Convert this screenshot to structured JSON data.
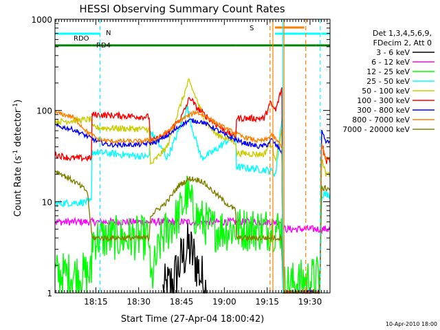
{
  "chart_data": {
    "type": "line",
    "title": "HESSI Observing Summary Count Rates",
    "xlabel": "Start Time (27-Apr-04 18:00:42)",
    "ylabel_main": "Count Rate (s",
    "ylabel_sup1": "-1",
    "ylabel_mid": " detector",
    "ylabel_sup2": "-1",
    "ylabel_end": ")",
    "yscale": "log",
    "ylim": [
      1,
      1000
    ],
    "xlim_minutes": [
      0.7,
      97.0
    ],
    "x_ticks": [
      {
        "minute": 15,
        "label": "18:15"
      },
      {
        "minute": 30,
        "label": "18:30"
      },
      {
        "minute": 45,
        "label": "18:45"
      },
      {
        "minute": 60,
        "label": "19:00"
      },
      {
        "minute": 75,
        "label": "19:15"
      },
      {
        "minute": 90,
        "label": "19:30"
      }
    ],
    "y_ticks": [
      {
        "value": 1,
        "label": "1"
      },
      {
        "value": 10,
        "label": "10"
      },
      {
        "value": 100,
        "label": "100"
      },
      {
        "value": 1000,
        "label": "1000"
      }
    ],
    "legend": {
      "placement": "right",
      "header": [
        "Det 1,3,4,5,6,9,",
        "FDecim 2, Att 0"
      ],
      "entries": [
        {
          "label": "3 - 6 keV",
          "color": "#000000"
        },
        {
          "label": "6 - 12 keV",
          "color": "#ff00ff"
        },
        {
          "label": "12 - 25 keV",
          "color": "#00ff00"
        },
        {
          "label": "25 - 50 keV",
          "color": "#00ffff"
        },
        {
          "label": "50 - 100 keV",
          "color": "#cccc00"
        },
        {
          "label": "100 - 300 keV",
          "color": "#ff0000"
        },
        {
          "label": "300 - 800 keV",
          "color": "#0000ff"
        },
        {
          "label": "800 - 7000 keV",
          "color": "#ff7f00"
        },
        {
          "label": "7000 - 20000 keV",
          "color": "#808000"
        }
      ]
    },
    "flags": [
      {
        "label": "RDO",
        "color": "#00ffff",
        "level": "upper",
        "segments": [
          [
            0.7,
            16.5
          ]
        ]
      },
      {
        "label": "N",
        "color": "#00ffff",
        "level": "top",
        "segments": []
      },
      {
        "label": "RD4",
        "color": "#008000",
        "level": "lower",
        "segments": [
          [
            0.7,
            13.5
          ],
          [
            13.5,
            33.8
          ],
          [
            33.8,
            64.0
          ],
          [
            64.0,
            92.0
          ],
          [
            92.0,
            97.0
          ]
        ]
      },
      {
        "label": "S",
        "color": "#ff7f00",
        "level": "top",
        "segments": [
          [
            77.7,
            88.0
          ]
        ]
      }
    ],
    "flag_cyan_right": [
      [
        77.7,
        93.5
      ],
      [
        94.0,
        97.0
      ]
    ],
    "vlines": [
      {
        "minute": 16.5,
        "color": "#00ffff",
        "style": "dashed"
      },
      {
        "minute": 76.0,
        "color": "#ff7f00",
        "style": "dashed"
      },
      {
        "minute": 77.0,
        "color": "#ff7f00",
        "style": "solid"
      },
      {
        "minute": 80.5,
        "color": "#00ffff",
        "style": "solid"
      },
      {
        "minute": 80.9,
        "color": "#ff7f00",
        "style": "solid"
      },
      {
        "minute": 88.5,
        "color": "#ff7f00",
        "style": "dashed"
      },
      {
        "minute": 93.6,
        "color": "#00ffff",
        "style": "dashed"
      }
    ],
    "series": [
      {
        "name": "3 - 6 keV",
        "color": "#000000",
        "noise": 0.6,
        "points": [
          [
            38.5,
            1.0
          ],
          [
            42,
            1.3
          ],
          [
            45,
            2.3
          ],
          [
            47.5,
            3.2
          ],
          [
            50,
            2.2
          ],
          [
            52.5,
            1.3
          ],
          [
            54,
            1.0
          ]
        ]
      },
      {
        "name": "6 - 12 keV",
        "color": "#ff00ff",
        "noise": 0.08,
        "points": [
          [
            0.7,
            6
          ],
          [
            80,
            6
          ],
          [
            81,
            5
          ],
          [
            97,
            5
          ]
        ]
      },
      {
        "name": "12 - 25 keV",
        "color": "#00ff00",
        "noise": 0.5,
        "points": [
          [
            0.7,
            1.6
          ],
          [
            13.5,
            1.6
          ],
          [
            13.6,
            4
          ],
          [
            33.8,
            4
          ],
          [
            34,
            1.2
          ],
          [
            38,
            4
          ],
          [
            44,
            7
          ],
          [
            47,
            12
          ],
          [
            50,
            7
          ],
          [
            56,
            5
          ],
          [
            80,
            5
          ],
          [
            80.8,
            1.2
          ],
          [
            93.5,
            1.5
          ]
        ]
      },
      {
        "name": "25 - 50 keV",
        "color": "#00ffff",
        "noise": 0.08,
        "points": [
          [
            0.7,
            9.5
          ],
          [
            13.5,
            10
          ],
          [
            13.7,
            35
          ],
          [
            33.8,
            31
          ],
          [
            34,
            60
          ],
          [
            40,
            30
          ],
          [
            44,
            60
          ],
          [
            47,
            110
          ],
          [
            49,
            60
          ],
          [
            52,
            30
          ],
          [
            56,
            35
          ],
          [
            64,
            55
          ],
          [
            64.2,
            24
          ],
          [
            76,
            22
          ],
          [
            78,
            20
          ],
          [
            80.4,
            100
          ],
          [
            80.6,
            1.0
          ],
          [
            93.5,
            1.0
          ],
          [
            94,
            12
          ],
          [
            97,
            12
          ]
        ]
      },
      {
        "name": "50 - 100 keV",
        "color": "#cccc00",
        "noise": 0.07,
        "points": [
          [
            0.7,
            75
          ],
          [
            13.5,
            80
          ],
          [
            13.7,
            65
          ],
          [
            33.8,
            62
          ],
          [
            34,
            25
          ],
          [
            40,
            40
          ],
          [
            44,
            100
          ],
          [
            47.5,
            210
          ],
          [
            50,
            140
          ],
          [
            53,
            80
          ],
          [
            57,
            55
          ],
          [
            64,
            45
          ],
          [
            64.2,
            34
          ],
          [
            74,
            33
          ],
          [
            76,
            45
          ],
          [
            78,
            30
          ],
          [
            80.2,
            60
          ],
          [
            80.5,
            1.0
          ],
          [
            93.5,
            1.0
          ],
          [
            94,
            30
          ],
          [
            95.5,
            20
          ],
          [
            97,
            20
          ]
        ]
      },
      {
        "name": "100 - 300 keV",
        "color": "#ff0000",
        "noise": 0.07,
        "points": [
          [
            0.7,
            33
          ],
          [
            6,
            30
          ],
          [
            13.5,
            30
          ],
          [
            13.7,
            90
          ],
          [
            33.8,
            85
          ],
          [
            34,
            45
          ],
          [
            40,
            55
          ],
          [
            45,
            85
          ],
          [
            48,
            140
          ],
          [
            50,
            110
          ],
          [
            53,
            90
          ],
          [
            56,
            75
          ],
          [
            62,
            55
          ],
          [
            64,
            50
          ],
          [
            64.2,
            82
          ],
          [
            74,
            82
          ],
          [
            76,
            120
          ],
          [
            78,
            100
          ],
          [
            80.2,
            180
          ],
          [
            80.5,
            1.0
          ],
          [
            93.5,
            1.0
          ],
          [
            94,
            45
          ],
          [
            95.5,
            28
          ],
          [
            97,
            28
          ]
        ]
      },
      {
        "name": "300 - 800 keV",
        "color": "#0000ff",
        "noise": 0.05,
        "points": [
          [
            0.7,
            68
          ],
          [
            7,
            62
          ],
          [
            12,
            52
          ],
          [
            16,
            45
          ],
          [
            20,
            42
          ],
          [
            30,
            42
          ],
          [
            36,
            45
          ],
          [
            41,
            55
          ],
          [
            45,
            70
          ],
          [
            48,
            78
          ],
          [
            52,
            75
          ],
          [
            56,
            65
          ],
          [
            61,
            52
          ],
          [
            66,
            45
          ],
          [
            72,
            40
          ],
          [
            75,
            42
          ],
          [
            76.5,
            48
          ],
          [
            78,
            42
          ],
          [
            80.2,
            35
          ],
          [
            80.5,
            1.0
          ],
          [
            93.5,
            1.0
          ],
          [
            94,
            60
          ],
          [
            95.5,
            45
          ],
          [
            97,
            45
          ]
        ]
      },
      {
        "name": "800 - 7000 keV",
        "color": "#ff7f00",
        "noise": 0.05,
        "points": [
          [
            0.7,
            95
          ],
          [
            7,
            85
          ],
          [
            12,
            58
          ],
          [
            16,
            48
          ],
          [
            20,
            46
          ],
          [
            30,
            46
          ],
          [
            36,
            48
          ],
          [
            41,
            62
          ],
          [
            45,
            80
          ],
          [
            50,
            96
          ],
          [
            54,
            85
          ],
          [
            58,
            70
          ],
          [
            62,
            60
          ],
          [
            66,
            52
          ],
          [
            72,
            46
          ],
          [
            75,
            48
          ],
          [
            76.5,
            55
          ],
          [
            78,
            48
          ],
          [
            80.2,
            40
          ],
          [
            80.5,
            1.0
          ],
          [
            93.5,
            1.0
          ],
          [
            94,
            45
          ],
          [
            95.5,
            30
          ],
          [
            97,
            30
          ]
        ]
      },
      {
        "name": "7000 - 20000 keV",
        "color": "#808000",
        "noise": 0.06,
        "points": [
          [
            0.7,
            22
          ],
          [
            7,
            17
          ],
          [
            12,
            13
          ],
          [
            13.7,
            4
          ],
          [
            33.8,
            4
          ],
          [
            34,
            7
          ],
          [
            40,
            10
          ],
          [
            44,
            15
          ],
          [
            48,
            18
          ],
          [
            52,
            17
          ],
          [
            56,
            13
          ],
          [
            60,
            10
          ],
          [
            64,
            8
          ],
          [
            64.2,
            4
          ],
          [
            74,
            4
          ],
          [
            76,
            4
          ],
          [
            80.2,
            4
          ],
          [
            80.5,
            1.0
          ],
          [
            93.5,
            1.0
          ],
          [
            94,
            14
          ],
          [
            95.5,
            14
          ],
          [
            97,
            14
          ]
        ]
      }
    ],
    "footer_date": "10-Apr-2010 18:00"
  }
}
